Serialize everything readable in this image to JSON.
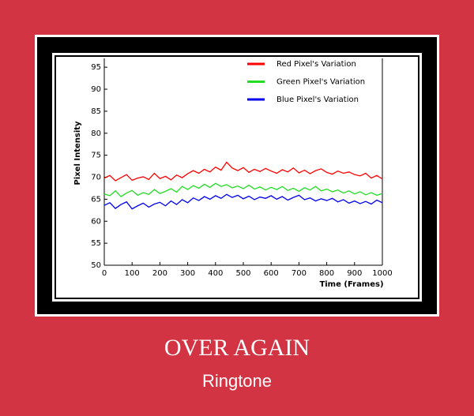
{
  "cover": {
    "title": "OVER AGAIN",
    "subtitle": "Ringtone"
  },
  "chart_data": {
    "type": "line",
    "xlabel": "Time (Frames)",
    "ylabel": "Pixel Intensity",
    "x": [
      0,
      20,
      40,
      60,
      80,
      100,
      120,
      140,
      160,
      180,
      200,
      220,
      240,
      260,
      280,
      300,
      320,
      340,
      360,
      380,
      400,
      420,
      440,
      460,
      480,
      500,
      520,
      540,
      560,
      580,
      600,
      620,
      640,
      660,
      680,
      700,
      720,
      740,
      760,
      780,
      800,
      820,
      840,
      860,
      880,
      900,
      920,
      940,
      960,
      980,
      1000
    ],
    "series": [
      {
        "name": "Red Pixel's Variation",
        "color": "#ff0000",
        "values": [
          69.8,
          70.4,
          69.2,
          69.9,
          70.6,
          69.3,
          69.8,
          70.1,
          69.5,
          70.9,
          69.7,
          70.2,
          69.4,
          70.5,
          69.9,
          70.8,
          71.5,
          70.9,
          71.8,
          71.2,
          72.3,
          71.6,
          73.4,
          72.1,
          71.5,
          72.2,
          71.1,
          71.8,
          71.3,
          72.0,
          71.4,
          70.9,
          71.7,
          71.2,
          72.1,
          71.0,
          71.6,
          70.8,
          71.5,
          71.9,
          71.1,
          70.7,
          71.4,
          70.9,
          71.2,
          70.6,
          70.3,
          70.9,
          69.8,
          70.4,
          69.6
        ]
      },
      {
        "name": "Green Pixel's Variation",
        "color": "#22dd22",
        "values": [
          66.2,
          65.8,
          66.9,
          65.6,
          66.4,
          67.0,
          65.9,
          66.5,
          66.1,
          67.2,
          66.3,
          66.8,
          67.4,
          66.6,
          67.9,
          67.2,
          68.1,
          67.5,
          68.4,
          67.7,
          68.6,
          67.9,
          68.3,
          67.6,
          68.0,
          67.4,
          68.2,
          67.3,
          67.8,
          67.1,
          67.7,
          67.2,
          67.9,
          67.0,
          67.5,
          66.8,
          67.6,
          67.1,
          67.9,
          66.9,
          67.3,
          66.7,
          67.1,
          66.4,
          66.9,
          66.2,
          66.7,
          66.0,
          66.5,
          65.9,
          66.3
        ]
      },
      {
        "name": "Blue Pixel's Variation",
        "color": "#0000ee",
        "values": [
          63.6,
          64.2,
          62.9,
          63.8,
          64.4,
          62.8,
          63.5,
          64.1,
          63.2,
          63.9,
          64.3,
          63.5,
          64.6,
          63.8,
          64.9,
          64.2,
          65.3,
          64.7,
          65.6,
          65.0,
          65.8,
          65.2,
          66.1,
          65.4,
          65.9,
          65.1,
          65.7,
          64.9,
          65.5,
          65.2,
          65.8,
          65.0,
          65.6,
          64.8,
          65.4,
          65.9,
          64.9,
          65.3,
          64.6,
          65.1,
          64.7,
          65.2,
          64.4,
          64.9,
          64.1,
          64.6,
          64.0,
          64.5,
          63.9,
          64.8,
          64.2
        ]
      }
    ],
    "xlim": [
      0,
      1000
    ],
    "xticks": [
      0,
      100,
      200,
      300,
      400,
      500,
      600,
      700,
      800,
      900,
      1000
    ],
    "ylim": [
      50,
      97
    ],
    "yticks": [
      50,
      55,
      60,
      65,
      70,
      75,
      80,
      85,
      90,
      95
    ],
    "legend": "upper right",
    "grid": false
  }
}
